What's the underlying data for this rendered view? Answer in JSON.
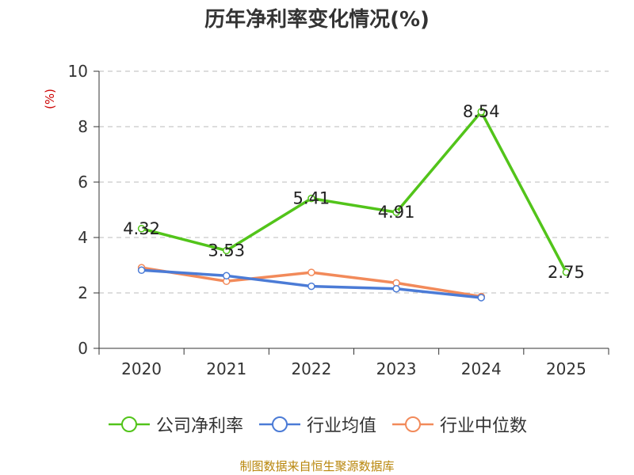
{
  "title": "历年净利率变化情况(%)",
  "footer": "制图数据来自恒生聚源数据库",
  "chart_data": {
    "type": "line",
    "categories": [
      "2020",
      "2021",
      "2022",
      "2023",
      "2024",
      "2025"
    ],
    "ylabel": "(%)",
    "ylim": [
      0,
      10
    ],
    "yticks": [
      0,
      2,
      4,
      6,
      8,
      10
    ],
    "grid": true,
    "legend_position": "bottom",
    "series": [
      {
        "name": "公司净利率",
        "color": "#52c41a",
        "values": [
          4.32,
          3.53,
          5.41,
          4.91,
          8.54,
          2.75
        ],
        "labels": [
          "4.32",
          "3.53",
          "5.41",
          "4.91",
          "8.54",
          "2.75"
        ]
      },
      {
        "name": "行业均值",
        "color": "#4b7bd6",
        "values": [
          2.82,
          2.62,
          2.24,
          2.15,
          1.83,
          null
        ]
      },
      {
        "name": "行业中位数",
        "color": "#f28a5a",
        "values": [
          2.91,
          2.42,
          2.74,
          2.36,
          1.87,
          null
        ]
      }
    ]
  }
}
